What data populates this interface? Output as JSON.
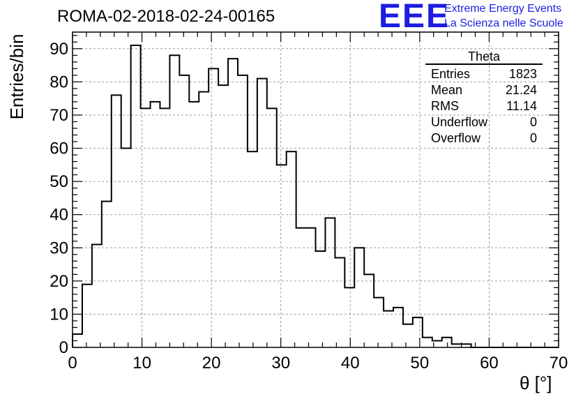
{
  "header": {
    "run_title": "ROMA-02-2018-02-24-00165",
    "logo_text": "EEE",
    "logo_line1": "Extreme Energy Events",
    "logo_line2": "La Scienza nelle Scuole"
  },
  "stats_box": {
    "title": "Theta",
    "rows": [
      {
        "label": "Entries",
        "value": "1823"
      },
      {
        "label": "Mean",
        "value": "21.24"
      },
      {
        "label": "RMS",
        "value": "11.14"
      },
      {
        "label": "Underflow",
        "value": "0"
      },
      {
        "label": "Overflow",
        "value": "0"
      }
    ]
  },
  "chart_data": {
    "type": "bar",
    "title": "ROMA-02-2018-02-24-00165",
    "xlabel": "θ [°]",
    "ylabel": "Entries/bin",
    "xlim": [
      0,
      70
    ],
    "ylim": [
      0,
      95
    ],
    "grid": true,
    "bin_width": 1.4,
    "x_ticks": [
      0,
      10,
      20,
      30,
      40,
      50,
      60,
      70
    ],
    "y_ticks": [
      0,
      10,
      20,
      30,
      40,
      50,
      60,
      70,
      80,
      90
    ],
    "values": [
      4,
      19,
      31,
      44,
      76,
      60,
      91,
      72,
      74,
      72,
      88,
      82,
      74,
      77,
      84,
      79,
      87,
      82,
      59,
      81,
      72,
      55,
      59,
      36,
      36,
      29,
      39,
      27,
      18,
      30,
      22,
      15,
      11,
      12,
      7,
      9,
      3,
      2,
      3,
      1,
      1,
      0,
      0,
      0,
      0,
      0,
      0,
      0,
      0,
      0
    ]
  }
}
